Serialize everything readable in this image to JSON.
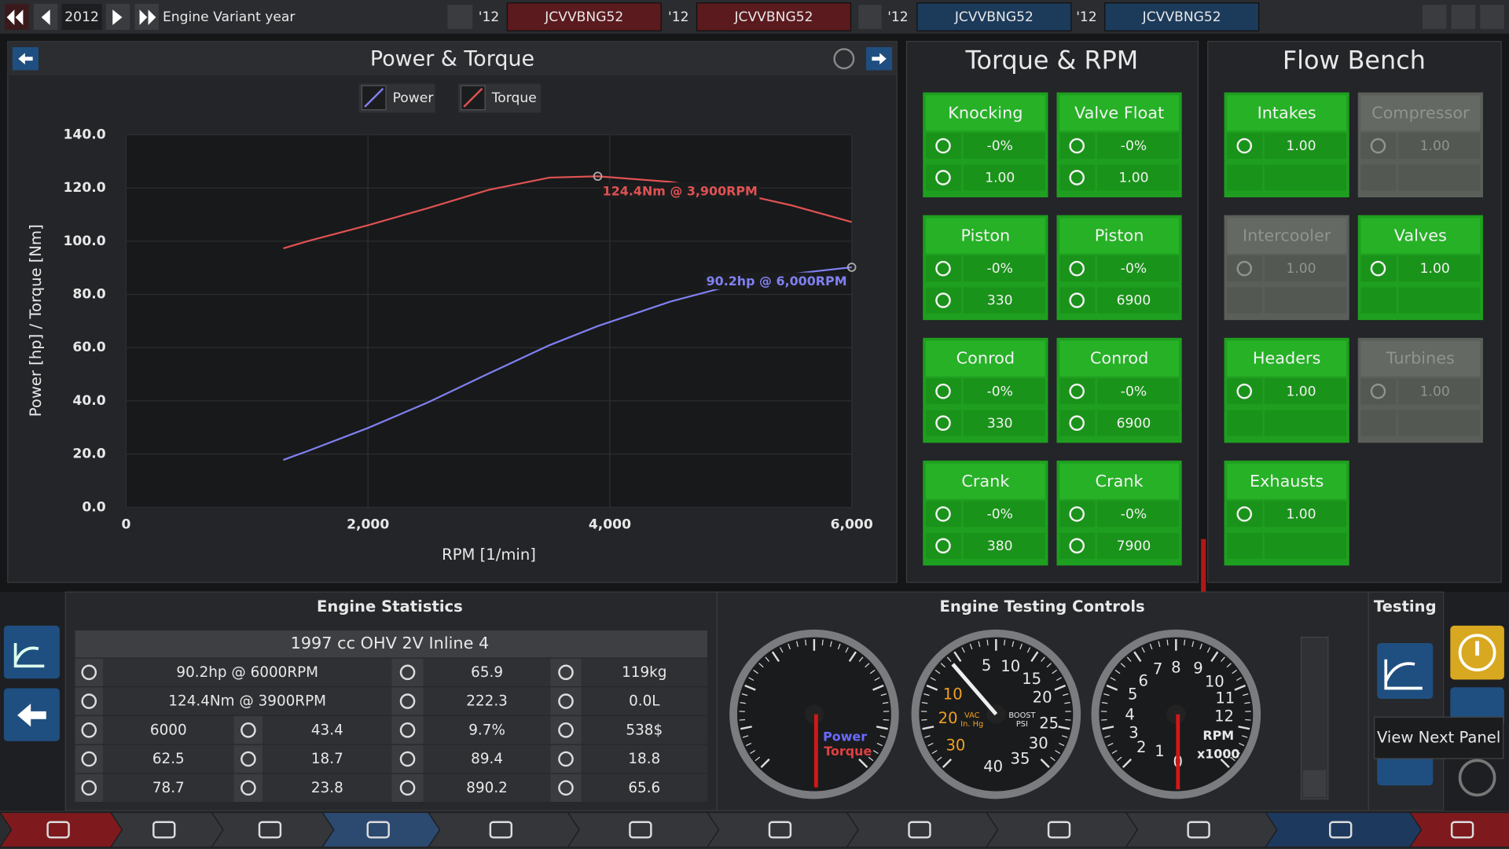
{
  "top_bar": {
    "year": "2012",
    "year_label": "Engine Variant year",
    "variants": [
      {
        "year": "'12",
        "name": "JCVVBNG52"
      },
      {
        "year": "'12",
        "name": "JCVVBNG52"
      },
      {
        "year": "'12",
        "name": "JCVVBNG52"
      },
      {
        "year": "'12",
        "name": "JCVVBNG52"
      }
    ]
  },
  "chart_data": {
    "type": "line",
    "title": "Power & Torque",
    "x_label": "RPM [1/min]",
    "y_label": "Power [hp] / Torque [Nm]",
    "x": [
      1300,
      1500,
      2000,
      2500,
      3000,
      3500,
      3900,
      4500,
      5000,
      5500,
      6000
    ],
    "series": [
      {
        "name": "Power",
        "color": "#8080f0",
        "values": [
          17.8,
          21.1,
          29.8,
          39.5,
          50.3,
          60.9,
          68.1,
          77.3,
          83.3,
          87.7,
          90.2
        ],
        "annotation": "90.2hp @ 6,000RPM"
      },
      {
        "name": "Torque",
        "color": "#e05252",
        "values": [
          97.3,
          100.0,
          106.0,
          112.5,
          119.3,
          123.9,
          124.4,
          122.3,
          118.6,
          113.5,
          107.2
        ],
        "annotation": "124.4Nm @ 3,900RPM"
      }
    ],
    "xlim": [
      0,
      6000
    ],
    "ylim": [
      0,
      140
    ],
    "xticks": [
      0,
      {
        "value": 2000,
        "label": "2,000"
      },
      {
        "value": 4000,
        "label": "4,000"
      },
      {
        "value": 6000,
        "label": "6,000"
      }
    ],
    "yticks": [
      {
        "value": 0,
        "label": "0.0"
      },
      {
        "value": 20,
        "label": "20.0"
      },
      {
        "value": 40,
        "label": "40.0"
      },
      {
        "value": 60,
        "label": "60.0"
      },
      {
        "value": 80,
        "label": "80.0"
      },
      {
        "value": 100,
        "label": "100.0"
      },
      {
        "value": 120,
        "label": "120.0"
      },
      {
        "value": 140,
        "label": "140.0"
      }
    ],
    "grid": true
  },
  "torque_rpm": {
    "title": "Torque & RPM",
    "cards": [
      {
        "title": "Knocking",
        "rows": [
          "-0%",
          "1.00"
        ]
      },
      {
        "title": "Valve Float",
        "rows": [
          "-0%",
          "1.00"
        ]
      },
      {
        "title": "Piston",
        "rows": [
          "-0%",
          "330"
        ]
      },
      {
        "title": "Piston",
        "rows": [
          "-0%",
          "6900"
        ]
      },
      {
        "title": "Conrod",
        "rows": [
          "-0%",
          "330"
        ]
      },
      {
        "title": "Conrod",
        "rows": [
          "-0%",
          "6900"
        ]
      },
      {
        "title": "Crank",
        "rows": [
          "-0%",
          "380"
        ]
      },
      {
        "title": "Crank",
        "rows": [
          "-0%",
          "7900"
        ]
      }
    ]
  },
  "flow_bench": {
    "title": "Flow Bench",
    "cards": [
      {
        "title": "Intakes",
        "value": "1.00",
        "enabled": true
      },
      {
        "title": "Compressor",
        "value": "1.00",
        "enabled": false
      },
      {
        "title": "Intercooler",
        "value": "1.00",
        "enabled": false
      },
      {
        "title": "Valves",
        "value": "1.00",
        "enabled": true
      },
      {
        "title": "Headers",
        "value": "1.00",
        "enabled": true
      },
      {
        "title": "Turbines",
        "value": "1.00",
        "enabled": false
      },
      {
        "title": "Exhausts",
        "value": "1.00",
        "enabled": true
      }
    ]
  },
  "engine_statistics": {
    "title": "Engine Statistics",
    "header": "1997 cc OHV 2V  Inline 4",
    "rows": [
      [
        "90.2hp @ 6000RPM",
        "65.9",
        "119kg"
      ],
      [
        "124.4Nm @ 3900RPM",
        "222.3",
        "0.0L"
      ],
      [
        "6000",
        "43.4",
        "9.7%",
        "538$"
      ],
      [
        "62.5",
        "18.7",
        "89.4",
        "18.8"
      ],
      [
        "78.7",
        "23.8",
        "890.2",
        "65.6"
      ]
    ]
  },
  "testing_controls": {
    "title": "Engine Testing Controls",
    "power_label": "Power",
    "torque_label": "Torque",
    "boost_numbers": [
      5,
      10,
      15,
      20,
      25,
      30,
      35,
      40
    ],
    "vacuum_numbers": [
      10,
      20,
      30
    ],
    "vacuum_unit": [
      "VAC",
      "In. Hg"
    ],
    "boost_unit": [
      "BOOST",
      "PSI"
    ],
    "rpm_numbers": [
      0,
      1,
      2,
      3,
      4,
      5,
      6,
      7,
      8,
      9,
      10,
      11,
      12
    ],
    "rpm_unit": [
      "RPM",
      "x1000"
    ]
  },
  "testing": {
    "title": "Testing",
    "tooltip": "View Next Panel"
  }
}
